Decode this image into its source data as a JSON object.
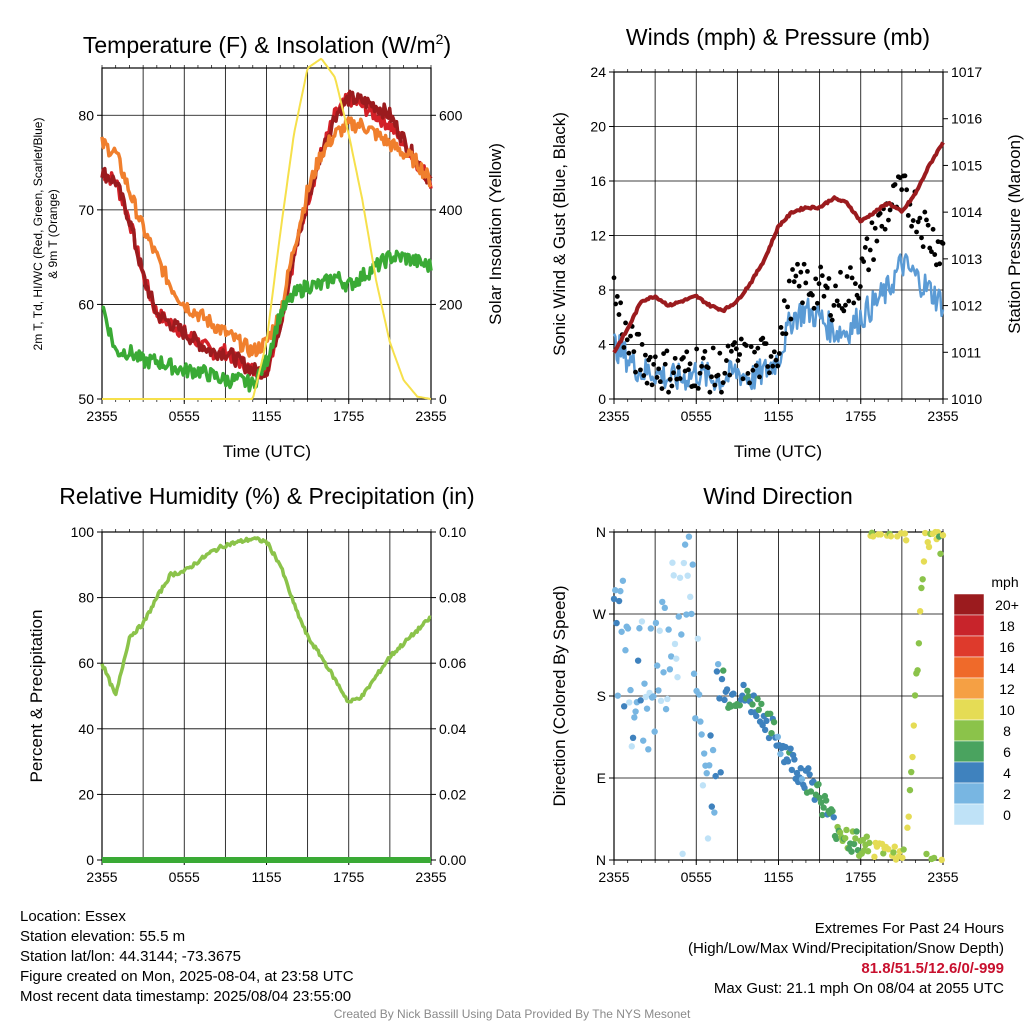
{
  "charts": {
    "temp": {
      "title": "Temperature (F) & Insolation (W/m",
      "title_sup": "2",
      "title_close": ")",
      "ylabel_lines": [
        "2m T, Td, HI/WC (Red, Green, Scarlet/Blue)",
        "& 9m T (Orange)"
      ],
      "ylabel_right": "Solar Insolation (Yellow)",
      "xlabel": "Time (UTC)",
      "y_ticks": [
        "50",
        "60",
        "70",
        "80"
      ],
      "y2_ticks": [
        "0",
        "200",
        "400",
        "600"
      ]
    },
    "wind": {
      "title": "Winds (mph) & Pressure (mb)",
      "ylabel": "Sonic Wind & Gust (Blue, Black)",
      "ylabel_right": "Station Pressure (Maroon)",
      "xlabel": "Time (UTC)",
      "y_ticks": [
        "0",
        "4",
        "8",
        "12",
        "16",
        "20",
        "24"
      ],
      "y2_ticks": [
        "1010",
        "1011",
        "1012",
        "1013",
        "1014",
        "1015",
        "1016",
        "1017"
      ]
    },
    "rh": {
      "title": "Relative Humidity (%) & Precipitation (in)",
      "ylabel": "Percent & Precipitation",
      "y_ticks": [
        "0",
        "20",
        "40",
        "60",
        "80",
        "100"
      ],
      "y2_ticks": [
        "0.00",
        "0.02",
        "0.04",
        "0.06",
        "0.08",
        "0.10"
      ]
    },
    "dir": {
      "title": "Wind Direction",
      "ylabel": "Direction (Colored By Speed)",
      "y_ticks": [
        "N",
        "E",
        "S",
        "W",
        "N"
      ],
      "legend_unit": "mph",
      "legend_labels": [
        "20+",
        "18",
        "16",
        "14",
        "12",
        "10",
        "8",
        "6",
        "4",
        "2",
        "0"
      ],
      "legend_colors": [
        "#9b1b1e",
        "#c8242b",
        "#de3a2c",
        "#ef6a2a",
        "#f5a044",
        "#e5dc55",
        "#8bc34a",
        "#4aa35f",
        "#3f82be",
        "#78b6e2",
        "#bfe2f7"
      ]
    },
    "x_ticks": [
      "2355",
      "0555",
      "1155",
      "1755",
      "2355"
    ]
  },
  "chart_data": [
    {
      "type": "line",
      "title": "Temperature (F) & Insolation (W/m2)",
      "xlabel": "Time (UTC)",
      "x": [
        "2355",
        "0055",
        "0155",
        "0255",
        "0355",
        "0455",
        "0555",
        "0655",
        "0755",
        "0855",
        "0955",
        "1055",
        "1155",
        "1255",
        "1355",
        "1455",
        "1555",
        "1655",
        "1755",
        "1855",
        "1955",
        "2055",
        "2155",
        "2255",
        "2355"
      ],
      "ylim": [
        50,
        85
      ],
      "y2lim": [
        0,
        700
      ],
      "series": [
        {
          "color": "#d32027",
          "axis": "left",
          "values": [
            74,
            73,
            69,
            63,
            59,
            58,
            57,
            56,
            55,
            55,
            54,
            53,
            53,
            58,
            65,
            71,
            76,
            80,
            81.8,
            81,
            80,
            79,
            77,
            75,
            73
          ]
        },
        {
          "color": "#9b1b1e",
          "axis": "left",
          "values": [
            74,
            73,
            69,
            63,
            59,
            58,
            57,
            56,
            55,
            55,
            54,
            53,
            53,
            58,
            65,
            71,
            76,
            80,
            81.8,
            81.5,
            81,
            80,
            77.5,
            75,
            73
          ]
        },
        {
          "color": "#f07f2d",
          "axis": "left",
          "values": [
            77,
            76,
            72,
            68,
            65,
            62,
            60,
            59,
            58,
            57,
            56,
            55,
            56,
            59,
            66,
            72,
            76,
            78,
            79,
            79,
            78,
            77,
            76,
            75,
            73
          ]
        },
        {
          "color": "#3aaa35",
          "axis": "left",
          "values": [
            60,
            55,
            55,
            54,
            54,
            53.5,
            53,
            53,
            52.5,
            52,
            52,
            51.5,
            54,
            59,
            61,
            62,
            62,
            63,
            62,
            63,
            64,
            65,
            65,
            64.5,
            64
          ]
        },
        {
          "color": "#f6e04b",
          "axis": "right",
          "values": [
            0,
            0,
            0,
            0,
            0,
            0,
            0,
            0,
            0,
            0,
            0,
            0,
            120,
            350,
            560,
            700,
            720,
            680,
            560,
            420,
            250,
            120,
            40,
            5,
            0
          ]
        }
      ]
    },
    {
      "type": "line",
      "title": "Winds (mph) & Pressure (mb)",
      "xlabel": "Time (UTC)",
      "x": [
        "2355",
        "0055",
        "0155",
        "0255",
        "0355",
        "0455",
        "0555",
        "0655",
        "0755",
        "0855",
        "0955",
        "1055",
        "1155",
        "1255",
        "1355",
        "1455",
        "1555",
        "1655",
        "1755",
        "1855",
        "1955",
        "2055",
        "2155",
        "2255",
        "2355"
      ],
      "ylim": [
        0,
        24
      ],
      "y2lim": [
        1010,
        1017
      ],
      "series": [
        {
          "color": "#5b9bd5",
          "axis": "left",
          "values": [
            4,
            3,
            2,
            2,
            1.5,
            1.5,
            2,
            1.5,
            1.5,
            2,
            1.5,
            2,
            3,
            6,
            6.5,
            6,
            5,
            5,
            6,
            7,
            8,
            10,
            9,
            8,
            7
          ]
        },
        {
          "color": "#000000",
          "axis": "left",
          "values": [
            8,
            4,
            3,
            2.5,
            2,
            2,
            2.5,
            2,
            2,
            3,
            2.5,
            3,
            4,
            8,
            8.5,
            8,
            7.5,
            8,
            9,
            12,
            14,
            15,
            14,
            12,
            11
          ]
        },
        {
          "color": "#9b1b1e",
          "axis": "right",
          "values": [
            1011,
            1011.5,
            1012.1,
            1012.2,
            1012.0,
            1012.1,
            1012.2,
            1012.0,
            1011.9,
            1012.1,
            1012.5,
            1013.0,
            1013.7,
            1014.0,
            1014.1,
            1014.1,
            1014.3,
            1014.2,
            1013.8,
            1014.0,
            1014.2,
            1014.0,
            1014.4,
            1015.0,
            1015.5
          ]
        }
      ]
    },
    {
      "type": "line",
      "title": "Relative Humidity (%) & Precipitation (in)",
      "x": [
        "2355",
        "0055",
        "0155",
        "0255",
        "0355",
        "0455",
        "0555",
        "0655",
        "0755",
        "0855",
        "0955",
        "1055",
        "1155",
        "1255",
        "1355",
        "1455",
        "1555",
        "1655",
        "1755",
        "1855",
        "1955",
        "2055",
        "2155",
        "2255",
        "2355"
      ],
      "ylim": [
        0,
        100
      ],
      "y2lim": [
        0,
        0.1
      ],
      "series": [
        {
          "color": "#8bc34a",
          "axis": "left",
          "values": [
            60,
            50,
            68,
            72,
            80,
            87,
            88,
            91,
            94,
            96,
            97,
            98,
            97,
            90,
            78,
            68,
            62,
            55,
            48,
            50,
            56,
            62,
            66,
            70,
            74
          ]
        },
        {
          "color": "#3aaa35",
          "axis": "right",
          "values": [
            0,
            0,
            0,
            0,
            0,
            0,
            0,
            0,
            0,
            0,
            0,
            0,
            0,
            0,
            0,
            0,
            0,
            0,
            0,
            0,
            0,
            0,
            0,
            0,
            0
          ]
        }
      ]
    },
    {
      "type": "scatter",
      "title": "Wind Direction",
      "x": [
        "2355",
        "0155",
        "0355",
        "0555",
        "0755",
        "0955",
        "1155",
        "1255",
        "1355",
        "1455",
        "1555",
        "1655",
        "1755",
        "1855",
        "1955",
        "2055",
        "2155",
        "2255",
        "2355"
      ],
      "y_direction_deg": [
        270,
        200,
        180,
        230,
        330,
        80,
        180,
        180,
        165,
        130,
        100,
        80,
        40,
        20,
        10,
        5,
        5,
        355,
        345
      ],
      "speed_mph": [
        3,
        2,
        2,
        1,
        1,
        2,
        4,
        5,
        5,
        4,
        4,
        5,
        6,
        7,
        9,
        10,
        9,
        9,
        8
      ]
    }
  ],
  "footer": {
    "location": "Location: Essex",
    "elevation": "Station elevation: 55.5 m",
    "latlon": "Station lat/lon: 44.3144; -73.3675",
    "created": "Figure created on Mon, 2025-08-04, at 23:58 UTC",
    "recent": "Most recent data timestamp: 2025/08/04 23:55:00",
    "extremes_title": "Extremes For Past 24 Hours",
    "extremes_sub": "(High/Low/Max Wind/Precipitation/Snow Depth)",
    "extremes_values": "81.8/51.5/12.6/0/-999",
    "max_gust": "Max Gust: 21.1 mph On 08/04 at 2055 UTC",
    "credit": "Created By Nick Bassill Using Data Provided By The NYS Mesonet"
  }
}
